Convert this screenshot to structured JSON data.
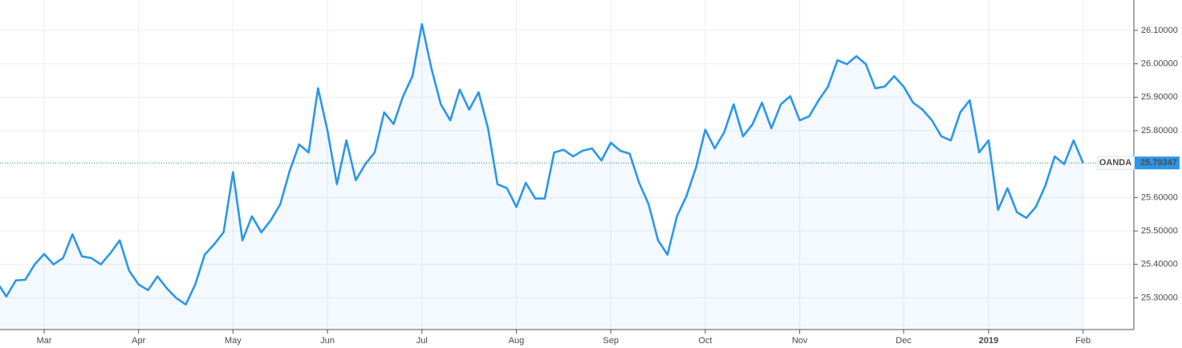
{
  "chart_data": {
    "type": "line",
    "categories": [
      null,
      null,
      null,
      null,
      null,
      "Mar",
      null,
      null,
      null,
      null,
      null,
      null,
      null,
      null,
      null,
      "Apr",
      null,
      null,
      null,
      null,
      null,
      null,
      null,
      null,
      null,
      "May",
      null,
      null,
      null,
      null,
      null,
      null,
      null,
      null,
      null,
      "Jun",
      null,
      null,
      null,
      null,
      null,
      null,
      null,
      null,
      null,
      "Jul",
      null,
      null,
      null,
      null,
      null,
      null,
      null,
      null,
      null,
      "Aug",
      null,
      null,
      null,
      null,
      null,
      null,
      null,
      null,
      null,
      "Sep",
      null,
      null,
      null,
      null,
      null,
      null,
      null,
      null,
      null,
      "Oct",
      null,
      null,
      null,
      null,
      null,
      null,
      null,
      null,
      null,
      "Nov",
      null,
      null,
      null,
      null,
      null,
      null,
      null,
      null,
      null,
      null,
      "Dec",
      null,
      null,
      null,
      null,
      null,
      null,
      null,
      null,
      "2019",
      null,
      null,
      null,
      null,
      null,
      null,
      null,
      null,
      null,
      "Feb"
    ],
    "values": [
      25.347,
      25.304,
      25.352,
      25.354,
      25.4,
      25.431,
      25.4,
      25.419,
      25.49,
      25.424,
      25.419,
      25.4,
      25.433,
      25.472,
      25.381,
      25.34,
      25.323,
      25.364,
      25.328,
      25.299,
      25.28,
      25.34,
      25.429,
      25.46,
      25.496,
      25.676,
      25.472,
      25.544,
      25.496,
      25.532,
      25.58,
      25.68,
      25.759,
      25.735,
      25.927,
      25.8,
      25.64,
      25.771,
      25.652,
      25.7,
      25.735,
      25.855,
      25.82,
      25.903,
      25.963,
      26.119,
      25.987,
      25.879,
      25.831,
      25.923,
      25.863,
      25.915,
      25.807,
      25.64,
      25.628,
      25.572,
      25.644,
      25.597,
      25.597,
      25.735,
      25.743,
      25.723,
      25.74,
      25.747,
      25.711,
      25.764,
      25.74,
      25.731,
      25.644,
      25.58,
      25.472,
      25.429,
      25.544,
      25.604,
      25.688,
      25.803,
      25.747,
      25.795,
      25.879,
      25.783,
      25.819,
      25.884,
      25.807,
      25.879,
      25.903,
      25.831,
      25.843,
      25.891,
      25.932,
      26.011,
      25.999,
      26.023,
      25.999,
      25.927,
      25.932,
      25.963,
      25.932,
      25.884,
      25.863,
      25.831,
      25.783,
      25.771,
      25.855,
      25.891,
      25.735,
      25.771,
      25.563,
      25.628,
      25.556,
      25.539,
      25.572,
      25.635,
      25.723,
      25.7,
      25.771,
      25.703
    ],
    "color": "#2c97e8",
    "ylim": [
      25.205,
      26.191
    ],
    "yticks": [
      {
        "value": 25.3,
        "label": "25.30000"
      },
      {
        "value": 25.4,
        "label": "25.40000"
      },
      {
        "value": 25.5,
        "label": "25.50000"
      },
      {
        "value": 25.6,
        "label": "25.60000"
      },
      {
        "value": 25.8,
        "label": "25.80000"
      },
      {
        "value": 25.9,
        "label": "25.90000"
      },
      {
        "value": 26.0,
        "label": "26.00000"
      },
      {
        "value": 26.1,
        "label": "26.10000"
      }
    ],
    "last_price": {
      "value": 25.70347,
      "label": "25.70347"
    },
    "source": "OANDA",
    "grid": true
  }
}
